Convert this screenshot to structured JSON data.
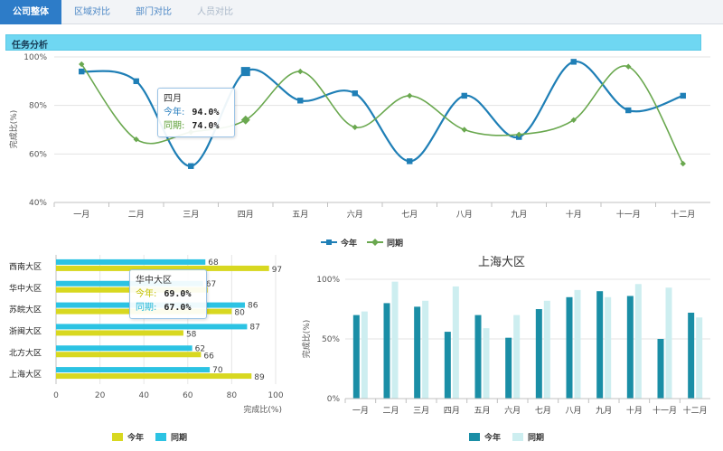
{
  "tabs": [
    {
      "label": "公司整体",
      "active": true
    },
    {
      "label": "区域对比",
      "active": false
    },
    {
      "label": "部门对比",
      "active": false
    },
    {
      "label": "人员对比",
      "active": false
    }
  ],
  "section_title": "任务分析",
  "colors": {
    "this_year_line": "#1f7fb6",
    "last_year_line": "#6aa84f",
    "bar_this": "#d8d820",
    "bar_last": "#2cc3e3",
    "col_this": "#1a8ea6",
    "col_last": "#cdeef0"
  },
  "chart_data": [
    {
      "type": "line",
      "title": "",
      "ylabel": "完成比(%)",
      "ylim": [
        40,
        100
      ],
      "yticks": [
        "40%",
        "60%",
        "80%",
        "100%"
      ],
      "categories": [
        "一月",
        "二月",
        "三月",
        "四月",
        "五月",
        "六月",
        "七月",
        "八月",
        "九月",
        "十月",
        "十一月",
        "十二月"
      ],
      "series": [
        {
          "name": "今年",
          "values": [
            94,
            90,
            55,
            94,
            82,
            85,
            57,
            84,
            67,
            98,
            78,
            84
          ]
        },
        {
          "name": "同期",
          "values": [
            97,
            66,
            69,
            74,
            94,
            71,
            84,
            70,
            68,
            74,
            96,
            56
          ]
        }
      ],
      "legend": "bottom",
      "tooltip": {
        "title": "四月",
        "rows": [
          {
            "label": "今年:",
            "value": "94.0%"
          },
          {
            "label": "同期:",
            "value": "74.0%"
          }
        ]
      }
    },
    {
      "type": "bar",
      "orientation": "horizontal",
      "xlabel": "完成比(%)",
      "xlim": [
        0,
        100
      ],
      "xticks": [
        "0",
        "20",
        "40",
        "60",
        "80",
        "100"
      ],
      "categories": [
        "西南大区",
        "华中大区",
        "苏皖大区",
        "浙闽大区",
        "北方大区",
        "上海大区"
      ],
      "series": [
        {
          "name": "今年",
          "values": [
            97,
            69,
            80,
            58,
            66,
            89
          ]
        },
        {
          "name": "同期",
          "values": [
            68,
            67,
            86,
            87,
            62,
            70
          ]
        }
      ],
      "labels": {
        "this_year": [
          "97",
          "",
          "80",
          "58",
          "66",
          "89"
        ],
        "last_year": [
          "68",
          "67",
          "86",
          "87",
          "62",
          "70"
        ],
        "hidden_this": "69"
      },
      "legend": "bottom",
      "tooltip": {
        "title": "华中大区",
        "rows": [
          {
            "label": "今年:",
            "value": "69.0%"
          },
          {
            "label": "同期:",
            "value": "67.0%"
          }
        ]
      }
    },
    {
      "type": "bar",
      "title": "上海大区",
      "ylabel": "完成比(%)",
      "ylim": [
        0,
        100
      ],
      "yticks": [
        "0%",
        "50%",
        "100%"
      ],
      "categories": [
        "一月",
        "二月",
        "三月",
        "四月",
        "五月",
        "六月",
        "七月",
        "八月",
        "九月",
        "十月",
        "十一月",
        "十二月"
      ],
      "series": [
        {
          "name": "今年",
          "values": [
            70,
            80,
            77,
            56,
            70,
            51,
            75,
            85,
            90,
            86,
            50,
            72
          ]
        },
        {
          "name": "同期",
          "values": [
            73,
            98,
            82,
            94,
            59,
            70,
            82,
            91,
            85,
            96,
            93,
            68
          ]
        }
      ],
      "legend": "bottom"
    }
  ]
}
